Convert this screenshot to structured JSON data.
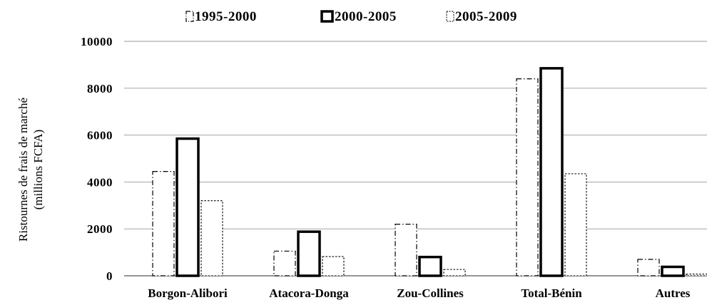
{
  "chart_data": {
    "type": "bar",
    "title": "",
    "xlabel": "",
    "ylabel_lines": [
      "Ristournes de frais de marché",
      "(millions FCFA)"
    ],
    "categories": [
      "Borgon-Alibori",
      "Atacora-Donga",
      "Zou-Collines",
      "Total-Bénin",
      "Autres"
    ],
    "series": [
      {
        "name": "1995-2000",
        "values": [
          4450,
          1050,
          2200,
          8400,
          700
        ]
      },
      {
        "name": "2000-2005",
        "values": [
          5850,
          1880,
          800,
          8850,
          380
        ]
      },
      {
        "name": "2005-2009",
        "values": [
          3200,
          820,
          270,
          4350,
          70
        ]
      }
    ],
    "ylim": [
      0,
      10000
    ],
    "yticks": [
      "0",
      "2000",
      "4000",
      "6000",
      "8000",
      "10000"
    ],
    "grid": true,
    "legend_position": "top"
  }
}
